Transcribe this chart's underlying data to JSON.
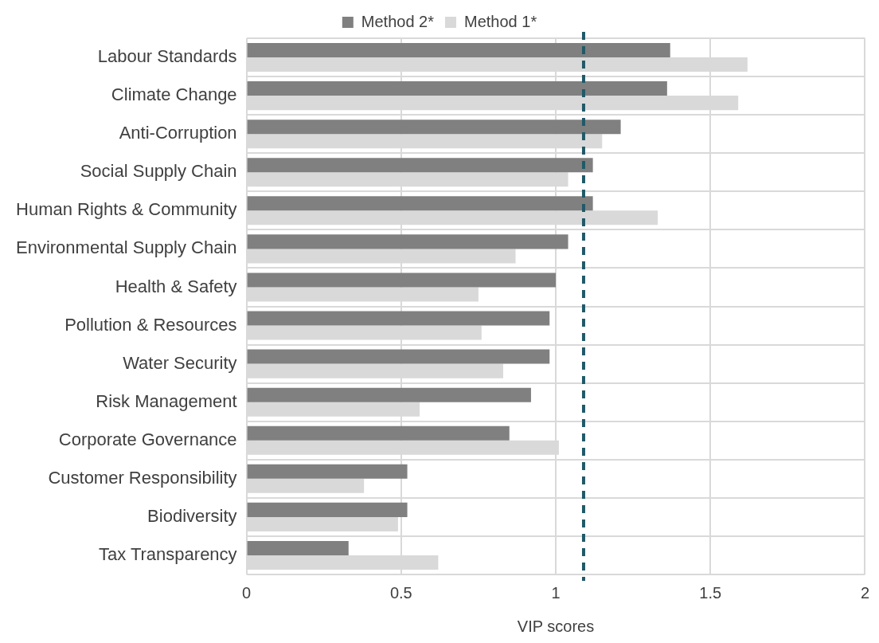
{
  "chart_data": {
    "type": "bar",
    "orientation": "horizontal",
    "xlabel": "VIP scores",
    "categories": [
      "Labour Standards",
      "Climate Change",
      "Anti-Corruption",
      "Social Supply Chain",
      "Human Rights & Community",
      "Environmental Supply Chain",
      "Health & Safety",
      "Pollution & Resources",
      "Water Security",
      "Risk Management",
      "Corporate Governance",
      "Customer Responsibility",
      "Biodiversity",
      "Tax Transparency"
    ],
    "series": [
      {
        "name": "Method 2*",
        "color": "#808080",
        "values": [
          1.37,
          1.36,
          1.21,
          1.12,
          1.12,
          1.04,
          1.0,
          0.98,
          0.98,
          0.92,
          0.85,
          0.52,
          0.52,
          0.33
        ]
      },
      {
        "name": "Method 1*",
        "color": "#d9d9d9",
        "values": [
          1.62,
          1.59,
          1.15,
          1.04,
          1.33,
          0.87,
          0.75,
          0.76,
          0.83,
          0.56,
          1.01,
          0.38,
          0.49,
          0.62
        ]
      }
    ],
    "xlim": [
      0,
      2
    ],
    "xticks": [
      0,
      0.5,
      1,
      1.5,
      2
    ],
    "grid": true,
    "legend": "top",
    "ref_lines": [
      {
        "axis": "x",
        "value": 1.09,
        "color": "#215968",
        "line_style": "dashed"
      }
    ]
  }
}
